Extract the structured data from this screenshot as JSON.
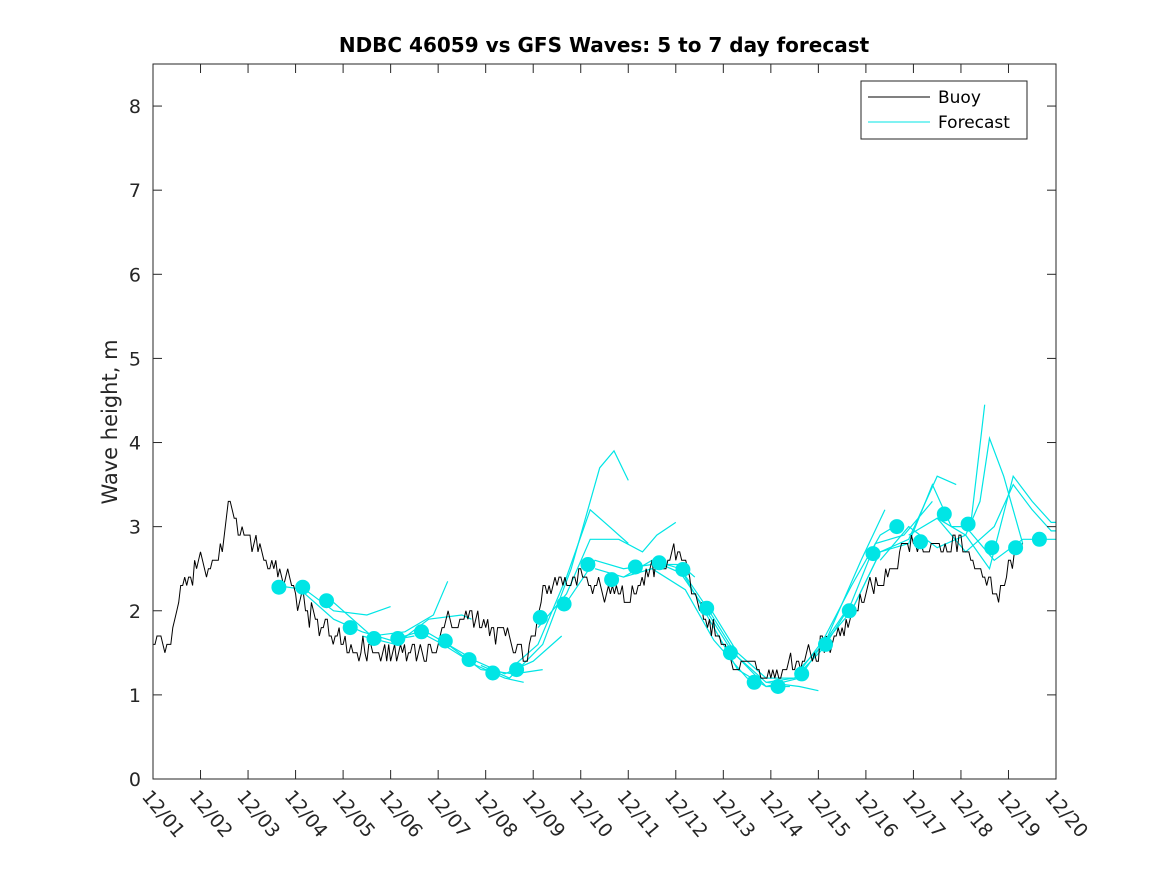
{
  "chart_data": {
    "type": "line",
    "title": "NDBC 46059 vs GFS Waves: 5 to 7 day forecast",
    "xlabel": "",
    "ylabel": "Wave height, m",
    "xlim": [
      0,
      19
    ],
    "ylim": [
      0,
      8.5
    ],
    "x_ticks": [
      0,
      1,
      2,
      3,
      4,
      5,
      6,
      7,
      8,
      9,
      10,
      11,
      12,
      13,
      14,
      15,
      16,
      17,
      18,
      19
    ],
    "x_tick_labels": [
      "12/01",
      "12/02",
      "12/03",
      "12/04",
      "12/05",
      "12/06",
      "12/07",
      "12/08",
      "12/09",
      "12/10",
      "12/11",
      "12/12",
      "12/13",
      "12/14",
      "12/15",
      "12/16",
      "12/17",
      "12/18",
      "12/19",
      "12/20"
    ],
    "y_ticks": [
      0,
      1,
      2,
      3,
      4,
      5,
      6,
      7,
      8
    ],
    "y_tick_labels": [
      "0",
      "1",
      "2",
      "3",
      "4",
      "5",
      "6",
      "7",
      "8"
    ],
    "legend": {
      "position": "top-right",
      "entries": [
        {
          "name": "Buoy",
          "color": "#000000"
        },
        {
          "name": "Forecast",
          "color": "#00e5e5"
        }
      ]
    },
    "buoy_color": "#000000",
    "forecast_color": "#00e5e5",
    "buoy_anchors": [
      [
        0.0,
        1.7
      ],
      [
        0.2,
        1.5
      ],
      [
        0.45,
        1.8
      ],
      [
        0.6,
        2.4
      ],
      [
        0.8,
        2.4
      ],
      [
        1.0,
        2.6
      ],
      [
        1.2,
        2.5
      ],
      [
        1.4,
        2.6
      ],
      [
        1.5,
        2.85
      ],
      [
        1.6,
        3.2
      ],
      [
        1.7,
        3.3
      ],
      [
        1.8,
        3.05
      ],
      [
        2.0,
        2.8
      ],
      [
        2.2,
        2.75
      ],
      [
        2.5,
        2.55
      ],
      [
        2.8,
        2.4
      ],
      [
        3.0,
        2.25
      ],
      [
        3.3,
        1.9
      ],
      [
        3.6,
        1.8
      ],
      [
        4.0,
        1.6
      ],
      [
        4.3,
        1.5
      ],
      [
        4.6,
        1.5
      ],
      [
        5.0,
        1.5
      ],
      [
        5.3,
        1.5
      ],
      [
        5.6,
        1.5
      ],
      [
        5.9,
        1.55
      ],
      [
        6.2,
        1.8
      ],
      [
        6.5,
        1.9
      ],
      [
        6.8,
        1.9
      ],
      [
        7.1,
        1.8
      ],
      [
        7.3,
        1.75
      ],
      [
        7.6,
        1.65
      ],
      [
        7.8,
        1.45
      ],
      [
        8.0,
        1.6
      ],
      [
        8.2,
        2.2
      ],
      [
        8.4,
        2.3
      ],
      [
        8.8,
        2.4
      ],
      [
        9.2,
        2.3
      ],
      [
        9.6,
        2.2
      ],
      [
        10.0,
        2.2
      ],
      [
        10.3,
        2.4
      ],
      [
        10.6,
        2.55
      ],
      [
        10.9,
        2.7
      ],
      [
        11.2,
        2.55
      ],
      [
        11.5,
        2.0
      ],
      [
        11.9,
        1.75
      ],
      [
        12.2,
        1.4
      ],
      [
        12.5,
        1.35
      ],
      [
        12.8,
        1.25
      ],
      [
        13.1,
        1.25
      ],
      [
        13.4,
        1.35
      ],
      [
        13.7,
        1.45
      ],
      [
        14.0,
        1.5
      ],
      [
        14.3,
        1.65
      ],
      [
        14.7,
        1.9
      ],
      [
        15.1,
        2.25
      ],
      [
        15.5,
        2.45
      ],
      [
        15.8,
        2.7
      ],
      [
        16.1,
        2.8
      ],
      [
        16.4,
        2.7
      ],
      [
        16.7,
        2.8
      ],
      [
        17.0,
        2.85
      ],
      [
        17.3,
        2.6
      ],
      [
        17.6,
        2.3
      ],
      [
        17.8,
        2.15
      ],
      [
        18.0,
        2.5
      ],
      [
        18.2,
        2.8
      ],
      [
        18.3,
        2.9
      ]
    ],
    "buoy_noise_amplitude": 0.15,
    "forecast_markers": [
      [
        2.65,
        2.28
      ],
      [
        3.15,
        2.28
      ],
      [
        3.65,
        2.12
      ],
      [
        4.15,
        1.8
      ],
      [
        4.65,
        1.67
      ],
      [
        5.15,
        1.67
      ],
      [
        5.65,
        1.75
      ],
      [
        6.15,
        1.64
      ],
      [
        6.65,
        1.42
      ],
      [
        7.15,
        1.26
      ],
      [
        7.65,
        1.3
      ],
      [
        8.15,
        1.92
      ],
      [
        8.65,
        2.08
      ],
      [
        9.15,
        2.55
      ],
      [
        9.65,
        2.37
      ],
      [
        10.15,
        2.52
      ],
      [
        10.65,
        2.57
      ],
      [
        11.15,
        2.49
      ],
      [
        11.65,
        2.03
      ],
      [
        12.15,
        1.5
      ],
      [
        12.65,
        1.15
      ],
      [
        13.15,
        1.1
      ],
      [
        13.65,
        1.25
      ],
      [
        14.15,
        1.6
      ],
      [
        14.65,
        2.0
      ],
      [
        15.15,
        2.68
      ],
      [
        15.65,
        3.0
      ],
      [
        16.15,
        2.82
      ],
      [
        16.65,
        3.15
      ],
      [
        17.15,
        3.03
      ],
      [
        17.65,
        2.75
      ],
      [
        18.15,
        2.75
      ],
      [
        18.65,
        2.85
      ]
    ],
    "forecast_runs": [
      [
        [
          2.6,
          2.3
        ],
        [
          3.2,
          2.25
        ],
        [
          3.8,
          2.0
        ],
        [
          4.5,
          1.95
        ],
        [
          5.0,
          2.05
        ]
      ],
      [
        [
          3.2,
          2.2
        ],
        [
          3.8,
          1.9
        ],
        [
          4.4,
          1.75
        ],
        [
          5.0,
          1.65
        ],
        [
          5.5,
          1.7
        ]
      ],
      [
        [
          3.8,
          2.1
        ],
        [
          4.6,
          1.7
        ],
        [
          5.3,
          1.75
        ],
        [
          5.9,
          1.95
        ],
        [
          6.2,
          2.35
        ]
      ],
      [
        [
          4.4,
          1.7
        ],
        [
          5.1,
          1.6
        ],
        [
          5.8,
          1.9
        ],
        [
          6.5,
          1.95
        ],
        [
          6.7,
          1.9
        ]
      ],
      [
        [
          5.0,
          1.65
        ],
        [
          5.6,
          1.75
        ],
        [
          6.1,
          1.6
        ],
        [
          6.8,
          1.35
        ],
        [
          7.4,
          1.2
        ],
        [
          7.8,
          1.15
        ]
      ],
      [
        [
          5.6,
          1.8
        ],
        [
          6.2,
          1.6
        ],
        [
          6.9,
          1.3
        ],
        [
          7.6,
          1.25
        ],
        [
          8.2,
          1.3
        ]
      ],
      [
        [
          6.2,
          1.6
        ],
        [
          6.8,
          1.4
        ],
        [
          7.4,
          1.25
        ],
        [
          8.0,
          1.4
        ],
        [
          8.6,
          1.7
        ]
      ],
      [
        [
          6.9,
          1.35
        ],
        [
          7.5,
          1.2
        ],
        [
          8.2,
          1.6
        ],
        [
          8.8,
          2.5
        ],
        [
          9.4,
          3.7
        ],
        [
          9.7,
          3.9
        ],
        [
          10.0,
          3.55
        ]
      ],
      [
        [
          7.5,
          1.3
        ],
        [
          8.1,
          1.6
        ],
        [
          8.7,
          2.4
        ],
        [
          9.2,
          3.2
        ],
        [
          9.6,
          3.0
        ],
        [
          10.0,
          2.8
        ]
      ],
      [
        [
          8.1,
          1.8
        ],
        [
          8.7,
          2.2
        ],
        [
          9.2,
          2.85
        ],
        [
          9.8,
          2.85
        ],
        [
          10.3,
          2.7
        ],
        [
          10.6,
          2.9
        ],
        [
          11.0,
          3.05
        ]
      ],
      [
        [
          8.7,
          2.1
        ],
        [
          9.3,
          2.6
        ],
        [
          9.9,
          2.5
        ],
        [
          10.5,
          2.55
        ],
        [
          11.1,
          2.55
        ],
        [
          11.4,
          2.4
        ]
      ],
      [
        [
          9.3,
          2.5
        ],
        [
          9.9,
          2.4
        ],
        [
          10.5,
          2.6
        ],
        [
          11.1,
          2.45
        ],
        [
          11.7,
          1.95
        ],
        [
          12.2,
          1.5
        ]
      ],
      [
        [
          9.9,
          2.4
        ],
        [
          10.5,
          2.5
        ],
        [
          11.2,
          2.25
        ],
        [
          11.8,
          1.65
        ],
        [
          12.5,
          1.2
        ],
        [
          12.8,
          1.15
        ]
      ],
      [
        [
          10.5,
          2.6
        ],
        [
          11.1,
          2.5
        ],
        [
          11.7,
          1.9
        ],
        [
          12.3,
          1.3
        ],
        [
          12.9,
          1.1
        ],
        [
          13.4,
          1.1
        ]
      ],
      [
        [
          11.1,
          2.5
        ],
        [
          11.7,
          2.0
        ],
        [
          12.3,
          1.45
        ],
        [
          12.9,
          1.15
        ],
        [
          13.6,
          1.1
        ],
        [
          14.0,
          1.05
        ]
      ],
      [
        [
          11.7,
          2.05
        ],
        [
          12.3,
          1.5
        ],
        [
          12.9,
          1.2
        ],
        [
          13.5,
          1.2
        ],
        [
          14.1,
          1.55
        ],
        [
          14.6,
          2.0
        ]
      ],
      [
        [
          12.3,
          1.45
        ],
        [
          12.9,
          1.1
        ],
        [
          13.6,
          1.2
        ],
        [
          14.2,
          1.7
        ],
        [
          14.9,
          2.6
        ],
        [
          15.4,
          3.2
        ]
      ],
      [
        [
          12.9,
          1.15
        ],
        [
          13.5,
          1.2
        ],
        [
          14.1,
          1.65
        ],
        [
          14.7,
          2.3
        ],
        [
          15.3,
          2.9
        ],
        [
          15.6,
          3.0
        ]
      ],
      [
        [
          13.5,
          1.25
        ],
        [
          14.1,
          1.6
        ],
        [
          14.7,
          2.1
        ],
        [
          15.2,
          2.8
        ],
        [
          15.8,
          2.9
        ],
        [
          16.4,
          3.3
        ]
      ],
      [
        [
          14.1,
          1.6
        ],
        [
          14.7,
          2.0
        ],
        [
          15.3,
          2.7
        ],
        [
          15.9,
          2.85
        ],
        [
          16.5,
          3.6
        ],
        [
          16.9,
          3.5
        ]
      ],
      [
        [
          14.7,
          2.0
        ],
        [
          15.3,
          2.7
        ],
        [
          15.9,
          2.8
        ],
        [
          16.4,
          3.5
        ],
        [
          16.8,
          3.0
        ],
        [
          17.2,
          3.0
        ],
        [
          17.5,
          4.45
        ]
      ],
      [
        [
          15.3,
          2.6
        ],
        [
          15.9,
          3.0
        ],
        [
          16.5,
          2.75
        ],
        [
          17.1,
          2.9
        ],
        [
          17.4,
          3.3
        ],
        [
          17.6,
          4.05
        ],
        [
          17.9,
          3.6
        ],
        [
          18.3,
          2.8
        ]
      ],
      [
        [
          15.9,
          2.9
        ],
        [
          16.5,
          3.1
        ],
        [
          17.1,
          2.7
        ],
        [
          17.7,
          3.0
        ],
        [
          18.1,
          3.5
        ],
        [
          18.5,
          3.2
        ],
        [
          18.9,
          2.95
        ],
        [
          19.0,
          2.95
        ]
      ],
      [
        [
          16.5,
          3.1
        ],
        [
          17.1,
          2.9
        ],
        [
          17.6,
          2.5
        ],
        [
          18.1,
          3.6
        ],
        [
          18.5,
          3.3
        ],
        [
          18.9,
          3.05
        ],
        [
          19.0,
          3.05
        ]
      ],
      [
        [
          17.1,
          3.0
        ],
        [
          17.7,
          2.6
        ],
        [
          18.3,
          2.85
        ],
        [
          18.8,
          2.85
        ],
        [
          19.0,
          2.85
        ]
      ]
    ]
  }
}
